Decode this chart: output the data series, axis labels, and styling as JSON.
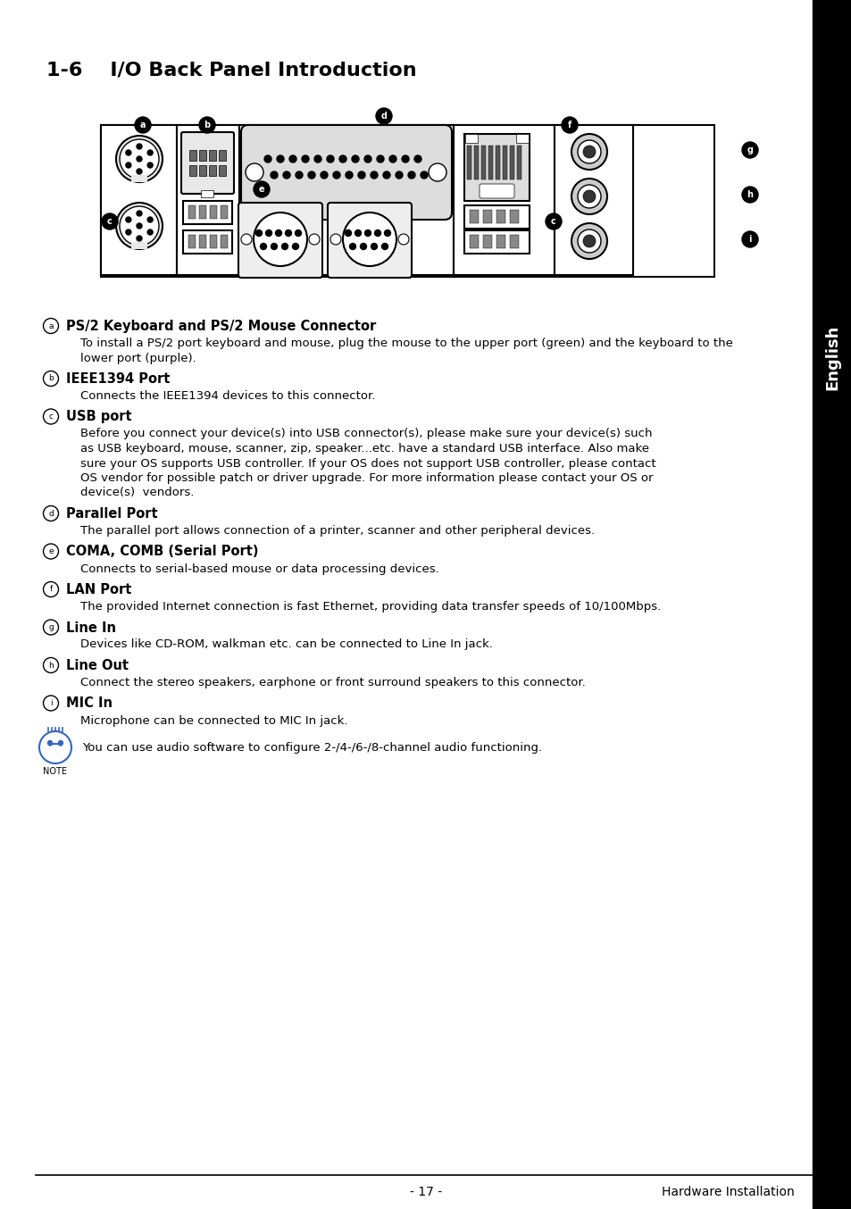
{
  "title": "1-6    I/O Back Panel Introduction",
  "title_fontsize": 16,
  "background_color": "#ffffff",
  "sidebar_text": "English",
  "footer_left": "- 17 -",
  "footer_right": "Hardware Installation",
  "sections": [
    {
      "label": "a",
      "heading": "PS/2 Keyboard and PS/2 Mouse Connector",
      "body": "To install a PS/2 port keyboard and mouse, plug the mouse to the upper port (green) and the keyboard to the\nlower port (purple)."
    },
    {
      "label": "b",
      "heading": "IEEE1394 Port",
      "body": "Connects the IEEE1394 devices to this connector."
    },
    {
      "label": "c",
      "heading": "USB port",
      "body": "Before you connect your device(s) into USB connector(s), please make sure your device(s) such\nas USB keyboard, mouse, scanner, zip, speaker...etc. have a standard USB interface. Also make\nsure your OS supports USB controller. If your OS does not support USB controller, please contact\nOS vendor for possible patch or driver upgrade. For more information please contact your OS or\ndevice(s)  vendors."
    },
    {
      "label": "d",
      "heading": "Parallel Port",
      "body": "The parallel port allows connection of a printer, scanner and other peripheral devices."
    },
    {
      "label": "e",
      "heading": "COMA, COMB (Serial Port)",
      "body": "Connects to serial-based mouse or data processing devices."
    },
    {
      "label": "f",
      "heading": "LAN Port",
      "body": "The provided Internet connection is fast Ethernet, providing data transfer speeds of 10/100Mbps."
    },
    {
      "label": "g",
      "heading": "Line In",
      "body": "Devices like CD-ROM, walkman etc. can be connected to Line In jack."
    },
    {
      "label": "h",
      "heading": "Line Out",
      "body": "Connect the stereo speakers, earphone or front surround speakers to this connector."
    },
    {
      "label": "i",
      "heading": "MIC In",
      "body": "Microphone can be connected to MIC In jack."
    }
  ],
  "note_text": "You can use audio software to configure 2-/4-/6-/8-channel audio functioning."
}
